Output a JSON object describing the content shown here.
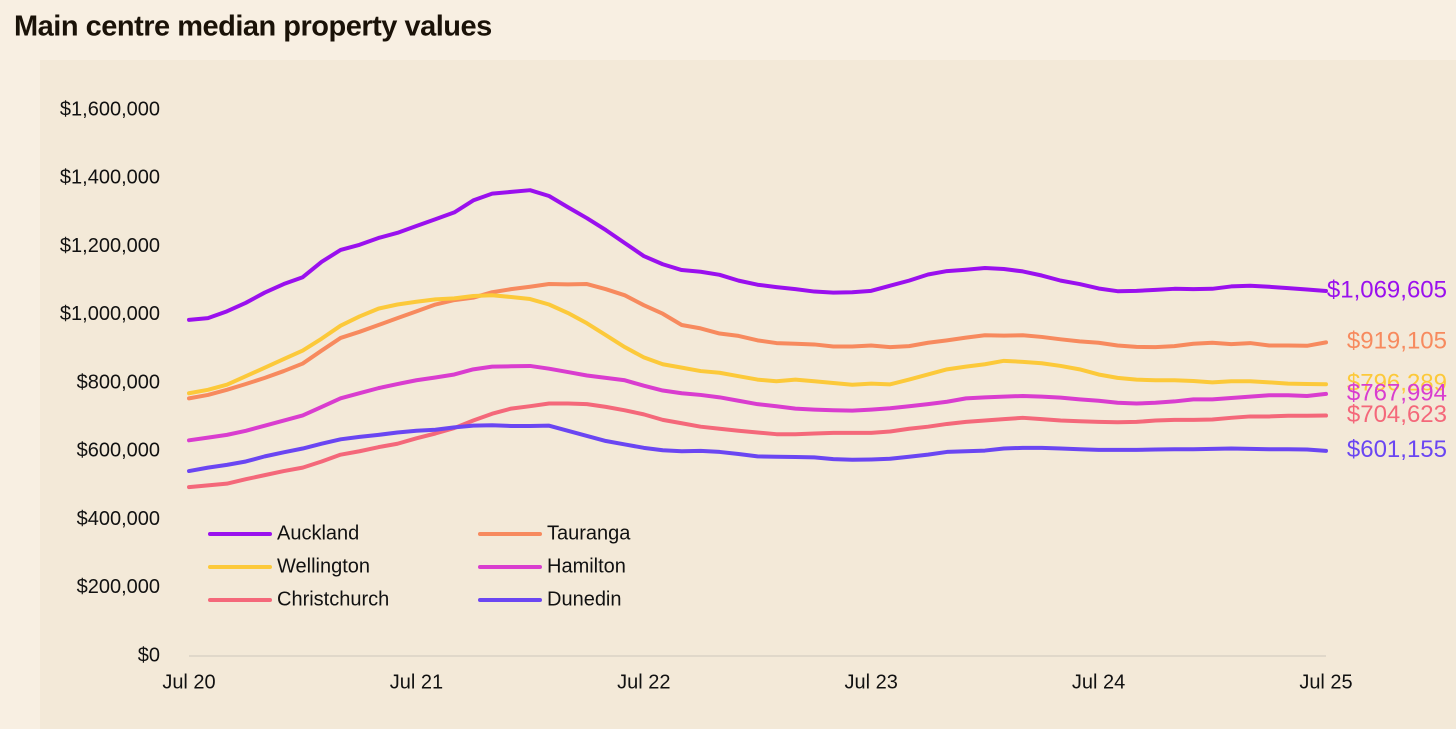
{
  "chart_data": {
    "type": "line",
    "title": "Main centre median property values",
    "categories": [
      "Jul 20",
      null,
      null,
      null,
      null,
      null,
      null,
      null,
      null,
      null,
      null,
      null,
      "Jul 21",
      null,
      null,
      null,
      null,
      null,
      null,
      null,
      null,
      null,
      null,
      null,
      "Jul 22",
      null,
      null,
      null,
      null,
      null,
      null,
      null,
      null,
      null,
      null,
      null,
      "Jul 23",
      null,
      null,
      null,
      null,
      null,
      null,
      null,
      null,
      null,
      null,
      null,
      "Jul 24",
      null,
      null,
      null,
      null,
      null,
      null,
      null,
      null,
      null,
      null,
      null,
      "Jul 25"
    ],
    "ylim": [
      0,
      1600000
    ],
    "yticks": [
      {
        "value": 0,
        "label": "$0"
      },
      {
        "value": 200000,
        "label": "$200,000"
      },
      {
        "value": 400000,
        "label": "$400,000"
      },
      {
        "value": 600000,
        "label": "$600,000"
      },
      {
        "value": 800000,
        "label": "$800,000"
      },
      {
        "value": 1000000,
        "label": "$1,000,000"
      },
      {
        "value": 1200000,
        "label": "$1,200,000"
      },
      {
        "value": 1400000,
        "label": "$1,400,000"
      },
      {
        "value": 1600000,
        "label": "$1,600,000"
      }
    ],
    "grid": false,
    "legend": "lower left",
    "series": [
      {
        "name": "Auckland",
        "color": "#9a10ee",
        "values": [
          985000,
          990000,
          1010000,
          1035000,
          1065000,
          1090000,
          1110000,
          1155000,
          1190000,
          1205000,
          1225000,
          1240000,
          1260000,
          1280000,
          1300000,
          1335000,
          1355000,
          1360000,
          1365000,
          1348000,
          1315000,
          1283000,
          1248000,
          1210000,
          1172000,
          1148000,
          1131000,
          1126000,
          1117000,
          1100000,
          1088000,
          1081000,
          1075000,
          1068000,
          1065000,
          1066000,
          1070000,
          1085000,
          1100000,
          1118000,
          1128000,
          1132000,
          1137000,
          1134000,
          1127000,
          1115000,
          1100000,
          1090000,
          1077000,
          1069000,
          1070000,
          1073000,
          1076000,
          1075000,
          1076000,
          1083000,
          1085000,
          1082000,
          1078000,
          1074000,
          1069605
        ],
        "value_labels": [
          null,
          null,
          null,
          null,
          null,
          null,
          null,
          null,
          null,
          null,
          null,
          null,
          null,
          null,
          null,
          null,
          null,
          null,
          null,
          null,
          null,
          null,
          null,
          null,
          null,
          null,
          null,
          null,
          null,
          null,
          null,
          null,
          null,
          null,
          null,
          null,
          null,
          null,
          null,
          null,
          null,
          null,
          null,
          null,
          null,
          null,
          null,
          null,
          null,
          null,
          null,
          null,
          null,
          null,
          null,
          null,
          null,
          null,
          null,
          null,
          "$1,069,605"
        ]
      },
      {
        "name": "Tauranga",
        "color": "#f78a5e",
        "values": [
          755000,
          765000,
          780000,
          797000,
          815000,
          835000,
          857000,
          895000,
          932000,
          950000,
          970000,
          990000,
          1010000,
          1030000,
          1043000,
          1050000,
          1066000,
          1075000,
          1082000,
          1090000,
          1089000,
          1090000,
          1075000,
          1057000,
          1028000,
          1003000,
          970000,
          960000,
          945000,
          938000,
          925000,
          917000,
          915000,
          913000,
          907000,
          907000,
          910000,
          905000,
          908000,
          918000,
          925000,
          933000,
          940000,
          939000,
          940000,
          935000,
          928000,
          922000,
          918000,
          910000,
          906000,
          905000,
          908000,
          915000,
          918000,
          914000,
          917000,
          910000,
          910000,
          909000,
          919105
        ],
        "value_labels": [
          null,
          null,
          null,
          null,
          null,
          null,
          null,
          null,
          null,
          null,
          null,
          null,
          null,
          null,
          null,
          null,
          null,
          null,
          null,
          null,
          null,
          null,
          null,
          null,
          null,
          null,
          null,
          null,
          null,
          null,
          null,
          null,
          null,
          null,
          null,
          null,
          null,
          null,
          null,
          null,
          null,
          null,
          null,
          null,
          null,
          null,
          null,
          null,
          null,
          null,
          null,
          null,
          null,
          null,
          null,
          null,
          null,
          null,
          null,
          null,
          "$919,105"
        ]
      },
      {
        "name": "Wellington",
        "color": "#fcc93a",
        "values": [
          770000,
          780000,
          795000,
          820000,
          845000,
          870000,
          895000,
          930000,
          968000,
          995000,
          1018000,
          1030000,
          1038000,
          1045000,
          1048000,
          1055000,
          1057000,
          1052000,
          1046000,
          1030000,
          1005000,
          975000,
          940000,
          905000,
          875000,
          855000,
          845000,
          835000,
          830000,
          820000,
          810000,
          805000,
          810000,
          805000,
          800000,
          795000,
          798000,
          796000,
          810000,
          825000,
          840000,
          848000,
          855000,
          865000,
          862000,
          858000,
          850000,
          840000,
          825000,
          815000,
          810000,
          808000,
          808000,
          806000,
          802000,
          805000,
          805000,
          802000,
          798000,
          797000,
          796289
        ],
        "value_labels": [
          null,
          null,
          null,
          null,
          null,
          null,
          null,
          null,
          null,
          null,
          null,
          null,
          null,
          null,
          null,
          null,
          null,
          null,
          null,
          null,
          null,
          null,
          null,
          null,
          null,
          null,
          null,
          null,
          null,
          null,
          null,
          null,
          null,
          null,
          null,
          null,
          null,
          null,
          null,
          null,
          null,
          null,
          null,
          null,
          null,
          null,
          null,
          null,
          null,
          null,
          null,
          null,
          null,
          null,
          null,
          null,
          null,
          null,
          null,
          null,
          "$796,289"
        ]
      },
      {
        "name": "Hamilton",
        "color": "#d93dcf",
        "values": [
          632000,
          640000,
          648000,
          660000,
          675000,
          690000,
          705000,
          730000,
          755000,
          770000,
          785000,
          797000,
          808000,
          816000,
          825000,
          840000,
          848000,
          849000,
          850000,
          842000,
          832000,
          822000,
          815000,
          808000,
          792000,
          778000,
          770000,
          765000,
          758000,
          748000,
          738000,
          732000,
          725000,
          722000,
          720000,
          719000,
          722000,
          726000,
          732000,
          738000,
          745000,
          755000,
          758000,
          760000,
          762000,
          760000,
          757000,
          752000,
          748000,
          742000,
          740000,
          742000,
          746000,
          752000,
          752000,
          756000,
          760000,
          764000,
          764000,
          762000,
          767994
        ],
        "value_labels": [
          null,
          null,
          null,
          null,
          null,
          null,
          null,
          null,
          null,
          null,
          null,
          null,
          null,
          null,
          null,
          null,
          null,
          null,
          null,
          null,
          null,
          null,
          null,
          null,
          null,
          null,
          null,
          null,
          null,
          null,
          null,
          null,
          null,
          null,
          null,
          null,
          null,
          null,
          null,
          null,
          null,
          null,
          null,
          null,
          null,
          null,
          null,
          null,
          null,
          null,
          null,
          null,
          null,
          null,
          null,
          null,
          null,
          null,
          null,
          null,
          "$767,994"
        ]
      },
      {
        "name": "Christchurch",
        "color": "#f4687a",
        "values": [
          495000,
          500000,
          505000,
          518000,
          530000,
          542000,
          552000,
          570000,
          590000,
          600000,
          612000,
          622000,
          638000,
          652000,
          668000,
          690000,
          710000,
          725000,
          732000,
          740000,
          740000,
          738000,
          730000,
          720000,
          708000,
          692000,
          682000,
          672000,
          666000,
          660000,
          655000,
          650000,
          650000,
          652000,
          654000,
          654000,
          654000,
          658000,
          666000,
          672000,
          680000,
          686000,
          690000,
          694000,
          698000,
          694000,
          690000,
          688000,
          686000,
          685000,
          686000,
          690000,
          692000,
          692000,
          693000,
          698000,
          702000,
          702000,
          704000,
          704000,
          704623
        ],
        "value_labels": [
          null,
          null,
          null,
          null,
          null,
          null,
          null,
          null,
          null,
          null,
          null,
          null,
          null,
          null,
          null,
          null,
          null,
          null,
          null,
          null,
          null,
          null,
          null,
          null,
          null,
          null,
          null,
          null,
          null,
          null,
          null,
          null,
          null,
          null,
          null,
          null,
          null,
          null,
          null,
          null,
          null,
          null,
          null,
          null,
          null,
          null,
          null,
          null,
          null,
          null,
          null,
          null,
          null,
          null,
          null,
          null,
          null,
          null,
          null,
          null,
          "$704,623"
        ]
      },
      {
        "name": "Dunedin",
        "color": "#6a46f2",
        "values": [
          542000,
          552000,
          560000,
          570000,
          585000,
          597000,
          608000,
          622000,
          635000,
          642000,
          648000,
          655000,
          660000,
          663000,
          670000,
          675000,
          676000,
          674000,
          674000,
          675000,
          660000,
          645000,
          630000,
          620000,
          610000,
          603000,
          600000,
          601000,
          598000,
          592000,
          585000,
          584000,
          583000,
          582000,
          577000,
          575000,
          576000,
          578000,
          584000,
          590000,
          598000,
          600000,
          602000,
          608000,
          610000,
          610000,
          608000,
          606000,
          604000,
          604000,
          604000,
          605000,
          606000,
          606000,
          607000,
          608000,
          607000,
          606000,
          606000,
          605000,
          601155
        ],
        "value_labels": [
          null,
          null,
          null,
          null,
          null,
          null,
          null,
          null,
          null,
          null,
          null,
          null,
          null,
          null,
          null,
          null,
          null,
          null,
          null,
          null,
          null,
          null,
          null,
          null,
          null,
          null,
          null,
          null,
          null,
          null,
          null,
          null,
          null,
          null,
          null,
          null,
          null,
          null,
          null,
          null,
          null,
          null,
          null,
          null,
          null,
          null,
          null,
          null,
          null,
          null,
          null,
          null,
          null,
          null,
          null,
          null,
          null,
          null,
          null,
          null,
          "$601,155"
        ]
      }
    ]
  }
}
